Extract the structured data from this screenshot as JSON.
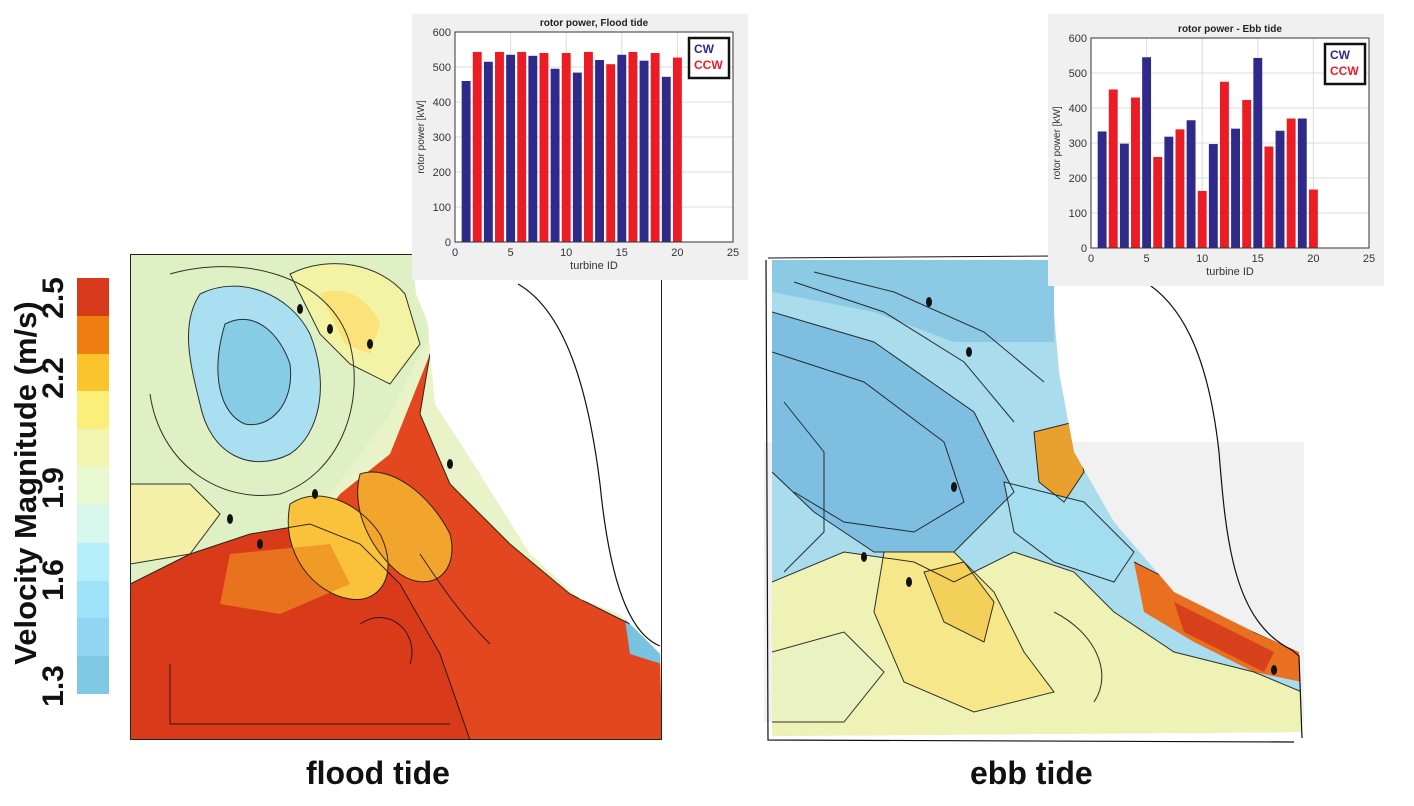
{
  "colorbar": {
    "title": "Velocity Magnitude (m/s)",
    "ticks": [
      "2.5",
      "2.2",
      "1.9",
      "1.6",
      "1.3"
    ],
    "colors": [
      "#d83a1c",
      "#ee7f10",
      "#fbc42c",
      "#fbef7a",
      "#f2f5b2",
      "#e8f9d2",
      "#d6f8ec",
      "#b4eefb",
      "#9fe3fb",
      "#93d4f2",
      "#7fc9e4"
    ]
  },
  "panels": {
    "flood_label": "flood tide",
    "ebb_label": "ebb tide"
  },
  "chart_data": [
    {
      "type": "bar",
      "title": "rotor power, Flood tide",
      "xlabel": "turbine ID",
      "ylabel": "rotor power [kW]",
      "xlim": [
        0,
        25
      ],
      "ylim": [
        0,
        600
      ],
      "xticks": [
        0,
        5,
        10,
        15,
        20,
        25
      ],
      "yticks": [
        0,
        100,
        200,
        300,
        400,
        500,
        600
      ],
      "grid": true,
      "legend_position": "top-right",
      "colors": {
        "CW": "#2e2a8a",
        "CCW": "#ec1c24"
      },
      "series": [
        {
          "name": "CW",
          "x": [
            1,
            3,
            5,
            7,
            9,
            11,
            13,
            15,
            17,
            19
          ],
          "values": [
            460,
            515,
            535,
            532,
            495,
            484,
            520,
            535,
            518,
            472
          ]
        },
        {
          "name": "CCW",
          "x": [
            2,
            4,
            6,
            8,
            10,
            12,
            14,
            16,
            18,
            20
          ],
          "values": [
            543,
            543,
            543,
            540,
            540,
            543,
            508,
            543,
            540,
            527
          ]
        }
      ]
    },
    {
      "type": "bar",
      "title": "rotor power - Ebb tide",
      "xlabel": "turbine ID",
      "ylabel": "rotor power [kW]",
      "xlim": [
        0,
        25
      ],
      "ylim": [
        0,
        600
      ],
      "xticks": [
        0,
        5,
        10,
        15,
        20,
        25
      ],
      "yticks": [
        0,
        100,
        200,
        300,
        400,
        500,
        600
      ],
      "grid": true,
      "legend_position": "top-right",
      "colors": {
        "CW": "#2e2a8a",
        "CCW": "#ec1c24"
      },
      "series": [
        {
          "name": "CW",
          "x": [
            1,
            3,
            5,
            7,
            9,
            11,
            13,
            15,
            17,
            19
          ],
          "values": [
            333,
            298,
            545,
            318,
            365,
            297,
            341,
            543,
            335,
            370
          ]
        },
        {
          "name": "CCW",
          "x": [
            2,
            4,
            6,
            8,
            10,
            12,
            14,
            16,
            18,
            20
          ],
          "values": [
            453,
            430,
            260,
            339,
            163,
            475,
            423,
            290,
            370,
            167
          ]
        }
      ]
    }
  ]
}
